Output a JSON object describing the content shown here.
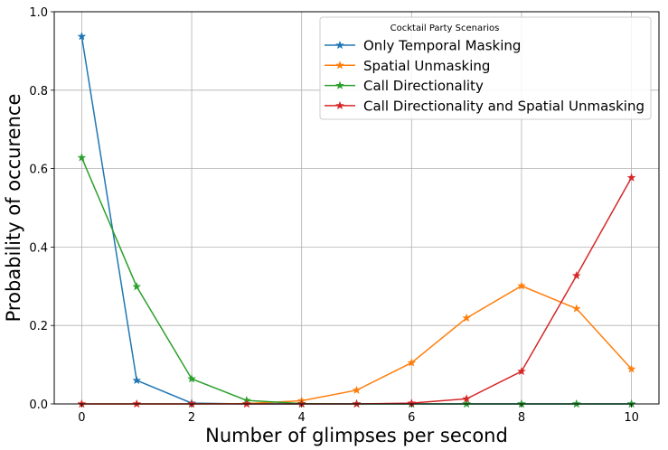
{
  "chart_data": {
    "type": "line",
    "title": "",
    "xlabel": "Number of glimpses per second",
    "ylabel": "Probability of occurence",
    "xlim": [
      -0.5,
      10.5
    ],
    "ylim": [
      0,
      1.0
    ],
    "xticks": [
      "0",
      "2",
      "4",
      "6",
      "8",
      "10"
    ],
    "xtick_values": [
      0,
      2,
      4,
      6,
      8,
      10
    ],
    "yticks": [
      "0.0",
      "0.2",
      "0.4",
      "0.6",
      "0.8",
      "1.0"
    ],
    "ytick_values": [
      0,
      0.2,
      0.4,
      0.6,
      0.8,
      1.0
    ],
    "grid": true,
    "legend_title": "Cocktail Party Scenarios",
    "legend_position": "upper right",
    "marker": "star",
    "x": [
      0,
      1,
      2,
      3,
      4,
      5,
      6,
      7,
      8,
      9,
      10
    ],
    "series": [
      {
        "name": "Only Temporal Masking",
        "color": "#1f77b4",
        "values": [
          0.937,
          0.06,
          0.002,
          0.0,
          0.0,
          0.0,
          0.0,
          0.0,
          0.0,
          0.0,
          0.0
        ]
      },
      {
        "name": "Spatial Unmasking",
        "color": "#ff7f0e",
        "values": [
          0.0,
          0.0,
          0.0,
          0.001,
          0.008,
          0.035,
          0.105,
          0.219,
          0.301,
          0.243,
          0.089
        ]
      },
      {
        "name": "Call Directionality",
        "color": "#2ca02c",
        "values": [
          0.628,
          0.299,
          0.064,
          0.009,
          0.001,
          0.0,
          0.0,
          0.0,
          0.0,
          0.0,
          0.0
        ]
      },
      {
        "name": "Call Directionality and Spatial Unmasking",
        "color": "#d62728",
        "values": [
          0.0,
          0.0,
          0.0,
          0.0,
          0.0,
          0.0,
          0.002,
          0.013,
          0.083,
          0.327,
          0.577
        ]
      }
    ]
  }
}
